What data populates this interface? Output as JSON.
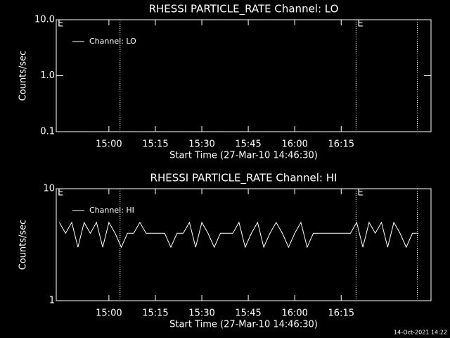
{
  "chart_data": [
    {
      "type": "line",
      "title": "RHESSI PARTICLE_RATE Channel: LO",
      "xlabel": "Start Time (27-Mar-10 14:46:30)",
      "ylabel": "Counts/sec",
      "log_y": true,
      "ylim": [
        0.1,
        10
      ],
      "yticks": [
        {
          "value": 0.1,
          "label": "0.1"
        },
        {
          "value": 1,
          "label": "1.0"
        },
        {
          "value": 10,
          "label": "10.0"
        }
      ],
      "xlim": [
        883,
        1004
      ],
      "xticks": [
        {
          "value": 900,
          "label": "15:00"
        },
        {
          "value": 915,
          "label": "15:15"
        },
        {
          "value": 930,
          "label": "15:30"
        },
        {
          "value": 945,
          "label": "15:45"
        },
        {
          "value": 960,
          "label": "16:00"
        },
        {
          "value": 975,
          "label": "16:15"
        }
      ],
      "vlines": [
        903.6,
        979.8,
        999.6
      ],
      "annotations": [
        {
          "x": 883,
          "text": "E"
        },
        {
          "x": 979.8,
          "text": "E"
        }
      ],
      "series": [
        {
          "name": "Channel: LO",
          "color": "#ffffff",
          "x": [],
          "values": []
        }
      ]
    },
    {
      "type": "line",
      "title": "RHESSI PARTICLE_RATE Channel: HI",
      "xlabel": "Start Time (27-Mar-10 14:46:30)",
      "ylabel": "Counts/sec",
      "log_y": true,
      "ylim": [
        1,
        10
      ],
      "yticks": [
        1,
        10
      ],
      "xlim": [
        883,
        1004
      ],
      "xticks": [
        {
          "value": 900,
          "label": "15:00"
        },
        {
          "value": 915,
          "label": "15:15"
        },
        {
          "value": 930,
          "label": "15:30"
        },
        {
          "value": 945,
          "label": "15:45"
        },
        {
          "value": 960,
          "label": "16:00"
        },
        {
          "value": 975,
          "label": "16:15"
        }
      ],
      "vlines": [
        903.6,
        979.8,
        999.6
      ],
      "annotations": [
        {
          "x": 883,
          "text": "E"
        },
        {
          "x": 979.8,
          "text": "E"
        }
      ],
      "series": [
        {
          "name": "Channel: HI",
          "color": "#ffffff",
          "x": [
            884,
            886,
            888,
            890,
            892,
            894,
            896,
            898,
            900,
            902,
            904,
            906,
            908,
            910,
            912,
            914,
            916,
            918,
            920,
            922,
            924,
            926,
            928,
            930,
            932,
            934,
            936,
            938,
            940,
            942,
            944,
            946,
            948,
            950,
            952,
            954,
            956,
            958,
            960,
            962,
            964,
            966,
            968,
            970,
            972,
            974,
            976,
            978,
            980,
            982,
            984,
            986,
            988,
            990,
            992,
            994,
            996,
            998,
            1000
          ],
          "values": [
            5,
            4,
            5,
            3,
            5,
            4,
            5,
            3,
            5,
            4,
            3,
            4,
            4,
            5,
            4,
            4,
            4,
            4,
            3,
            4,
            4,
            5,
            3,
            5,
            4,
            3,
            4,
            4,
            4,
            5,
            3,
            4,
            5,
            3,
            4,
            5,
            4,
            3,
            4,
            5,
            3,
            4,
            4,
            4,
            4,
            4,
            4,
            4,
            5,
            3,
            5,
            4,
            5,
            3,
            5,
            4,
            3,
            4,
            4
          ]
        }
      ]
    }
  ],
  "footer": "14-Oct-2021 14:22"
}
